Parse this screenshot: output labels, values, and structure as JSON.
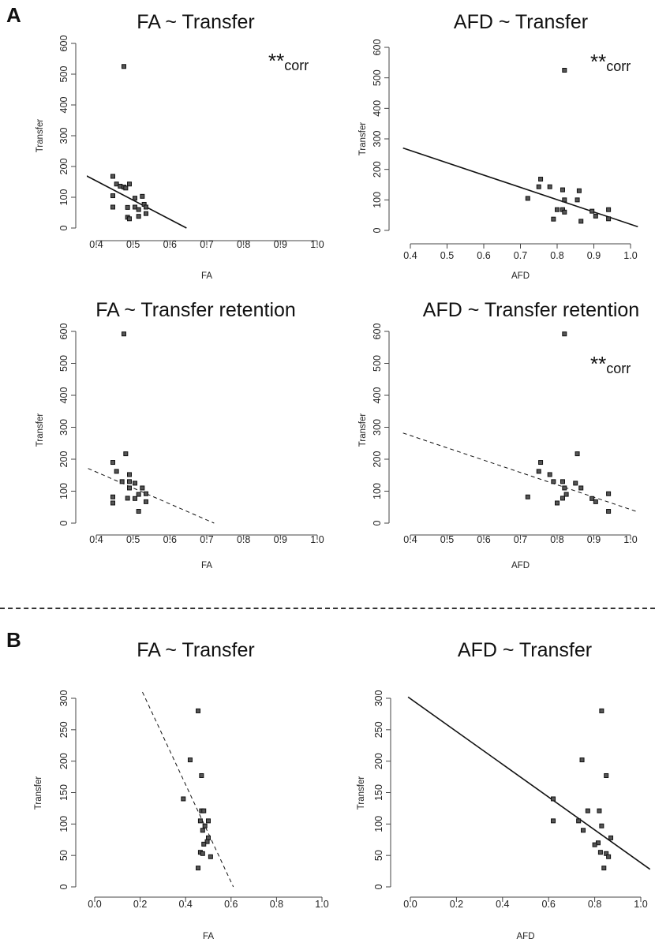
{
  "panels": {
    "a": "A",
    "b": "B"
  },
  "chart_data": [
    {
      "type": "scatter",
      "title": "FA ~ Transfer",
      "xlabel": "FA",
      "ylabel": "Transfer",
      "xlim": [
        0.4,
        1.0
      ],
      "ylim": [
        0,
        600
      ],
      "xticks": [
        "0.4",
        "0.5",
        "0.6",
        "0.7",
        "0.8",
        "0.9",
        "1.0"
      ],
      "yticks": [
        "0",
        "100",
        "200",
        "300",
        "400",
        "500",
        "600"
      ],
      "annotation": {
        "stars": "**",
        "text": "corr"
      },
      "fit_line": {
        "style": "solid",
        "points": [
          [
            0.36,
            178
          ],
          [
            0.645,
            0
          ]
        ]
      },
      "points": [
        [
          0.475,
          525
        ],
        [
          0.445,
          168
        ],
        [
          0.455,
          143
        ],
        [
          0.465,
          136
        ],
        [
          0.475,
          133
        ],
        [
          0.48,
          130
        ],
        [
          0.49,
          143
        ],
        [
          0.445,
          105
        ],
        [
          0.445,
          68
        ],
        [
          0.485,
          67
        ],
        [
          0.485,
          35
        ],
        [
          0.49,
          30
        ],
        [
          0.505,
          97
        ],
        [
          0.505,
          68
        ],
        [
          0.515,
          60
        ],
        [
          0.515,
          38
        ],
        [
          0.525,
          103
        ],
        [
          0.53,
          77
        ],
        [
          0.535,
          68
        ],
        [
          0.535,
          47
        ]
      ]
    },
    {
      "type": "scatter",
      "title": "AFD ~ Transfer",
      "xlabel": "AFD",
      "ylabel": "Transfer",
      "xlim": [
        0.4,
        1.0
      ],
      "ylim": [
        0,
        600
      ],
      "xticks": [
        "0.4",
        "0.5",
        "0.6",
        "0.7",
        "0.8",
        "0.9",
        "1.0"
      ],
      "yticks": [
        "0",
        "100",
        "200",
        "300",
        "400",
        "500",
        "600"
      ],
      "annotation": {
        "stars": "**",
        "text": "corr"
      },
      "fit_line": {
        "style": "solid",
        "points": [
          [
            0.38,
            270
          ],
          [
            1.02,
            12
          ]
        ]
      },
      "points": [
        [
          0.82,
          525
        ],
        [
          0.755,
          168
        ],
        [
          0.75,
          143
        ],
        [
          0.78,
          143
        ],
        [
          0.815,
          133
        ],
        [
          0.86,
          130
        ],
        [
          0.72,
          105
        ],
        [
          0.82,
          100
        ],
        [
          0.855,
          100
        ],
        [
          0.8,
          68
        ],
        [
          0.815,
          68
        ],
        [
          0.82,
          60
        ],
        [
          0.895,
          63
        ],
        [
          0.94,
          68
        ],
        [
          0.79,
          37
        ],
        [
          0.865,
          30
        ],
        [
          0.905,
          47
        ],
        [
          0.94,
          38
        ]
      ]
    },
    {
      "type": "scatter",
      "title": "FA ~ Transfer retention",
      "xlabel": "FA",
      "ylabel": "Transfer",
      "xlim": [
        0.4,
        1.0
      ],
      "ylim": [
        0,
        600
      ],
      "xticks": [
        "0.4",
        "0.5",
        "0.6",
        "0.7",
        "0.8",
        "0.9",
        "1.0"
      ],
      "yticks": [
        "0",
        "100",
        "200",
        "300",
        "400",
        "500",
        "600"
      ],
      "fit_line": {
        "style": "dashed",
        "points": [
          [
            0.36,
            180
          ],
          [
            0.72,
            0
          ]
        ]
      },
      "points": [
        [
          0.475,
          592
        ],
        [
          0.48,
          217
        ],
        [
          0.445,
          190
        ],
        [
          0.455,
          162
        ],
        [
          0.49,
          152
        ],
        [
          0.47,
          130
        ],
        [
          0.49,
          130
        ],
        [
          0.505,
          125
        ],
        [
          0.49,
          110
        ],
        [
          0.525,
          110
        ],
        [
          0.515,
          90
        ],
        [
          0.535,
          92
        ],
        [
          0.445,
          82
        ],
        [
          0.485,
          78
        ],
        [
          0.505,
          77
        ],
        [
          0.535,
          67
        ],
        [
          0.445,
          63
        ],
        [
          0.515,
          37
        ]
      ]
    },
    {
      "type": "scatter",
      "title": "AFD ~ Transfer retention",
      "xlabel": "AFD",
      "ylabel": "Transfer",
      "xlim": [
        0.4,
        1.0
      ],
      "ylim": [
        0,
        600
      ],
      "xticks": [
        "0.4",
        "0.5",
        "0.6",
        "0.7",
        "0.8",
        "0.9",
        "1.0"
      ],
      "yticks": [
        "0",
        "100",
        "200",
        "300",
        "400",
        "500",
        "600"
      ],
      "annotation": {
        "stars": "**",
        "text": "corr"
      },
      "fit_line": {
        "style": "dashed",
        "points": [
          [
            0.38,
            282
          ],
          [
            1.02,
            35
          ]
        ]
      },
      "points": [
        [
          0.82,
          592
        ],
        [
          0.855,
          217
        ],
        [
          0.755,
          190
        ],
        [
          0.75,
          162
        ],
        [
          0.78,
          152
        ],
        [
          0.79,
          130
        ],
        [
          0.815,
          130
        ],
        [
          0.85,
          125
        ],
        [
          0.82,
          110
        ],
        [
          0.865,
          110
        ],
        [
          0.825,
          90
        ],
        [
          0.94,
          92
        ],
        [
          0.72,
          82
        ],
        [
          0.815,
          78
        ],
        [
          0.895,
          77
        ],
        [
          0.8,
          63
        ],
        [
          0.905,
          67
        ],
        [
          0.94,
          37
        ]
      ]
    },
    {
      "type": "scatter",
      "title": "FA ~ Transfer",
      "xlabel": "FA",
      "ylabel": "Transfer",
      "xlim": [
        0.0,
        1.0
      ],
      "ylim": [
        0,
        300
      ],
      "xticks": [
        "0.0",
        "0.2",
        "0.4",
        "0.6",
        "0.8",
        "1.0"
      ],
      "yticks": [
        "0",
        "50",
        "100",
        "150",
        "200",
        "250",
        "300"
      ],
      "fit_line": {
        "style": "dashed",
        "points": [
          [
            0.21,
            310
          ],
          [
            0.61,
            0
          ]
        ]
      },
      "points": [
        [
          0.455,
          280
        ],
        [
          0.42,
          202
        ],
        [
          0.47,
          177
        ],
        [
          0.39,
          140
        ],
        [
          0.47,
          121
        ],
        [
          0.48,
          121
        ],
        [
          0.465,
          105
        ],
        [
          0.5,
          105
        ],
        [
          0.485,
          97
        ],
        [
          0.475,
          90
        ],
        [
          0.5,
          78
        ],
        [
          0.495,
          72
        ],
        [
          0.48,
          68
        ],
        [
          0.465,
          55
        ],
        [
          0.475,
          53
        ],
        [
          0.51,
          48
        ],
        [
          0.455,
          30
        ]
      ]
    },
    {
      "type": "scatter",
      "title": "AFD ~ Transfer",
      "xlabel": "AFD",
      "ylabel": "Transfer",
      "xlim": [
        0.0,
        1.0
      ],
      "ylim": [
        0,
        300
      ],
      "xticks": [
        "0.0",
        "0.2",
        "0.4",
        "0.6",
        "0.8",
        "1.0"
      ],
      "yticks": [
        "0",
        "50",
        "100",
        "150",
        "200",
        "250",
        "300"
      ],
      "fit_line": {
        "style": "solid",
        "points": [
          [
            -0.01,
            302
          ],
          [
            1.04,
            28
          ]
        ]
      },
      "points": [
        [
          0.83,
          280
        ],
        [
          0.745,
          202
        ],
        [
          0.85,
          177
        ],
        [
          0.62,
          140
        ],
        [
          0.77,
          121
        ],
        [
          0.82,
          121
        ],
        [
          0.62,
          105
        ],
        [
          0.73,
          105
        ],
        [
          0.83,
          97
        ],
        [
          0.75,
          90
        ],
        [
          0.87,
          78
        ],
        [
          0.815,
          70
        ],
        [
          0.8,
          67
        ],
        [
          0.825,
          55
        ],
        [
          0.85,
          53
        ],
        [
          0.86,
          48
        ],
        [
          0.84,
          30
        ]
      ]
    }
  ]
}
